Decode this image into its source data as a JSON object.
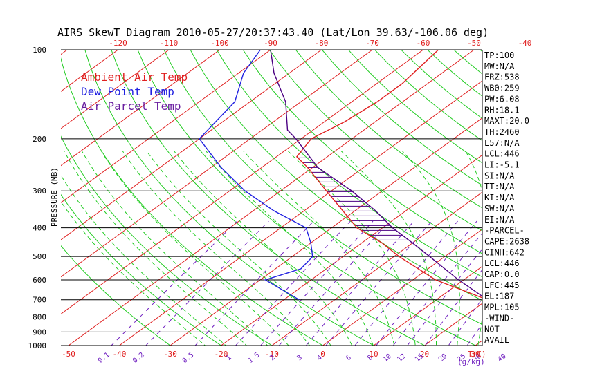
{
  "title": "AIRS SkewT Diagram 2010-05-27/20:37:43.40 (Lat/Lon 39.63/-106.06 deg)",
  "legend": [
    {
      "label": "Ambient Air Temp",
      "color": "#e02020"
    },
    {
      "label": "Dew Point Temp",
      "color": "#2020e0"
    },
    {
      "label": "Air Parcel Temp",
      "color": "#6a1fa0"
    }
  ],
  "colors": {
    "isotherm": "#e02020",
    "dry_adiabat": "#22cc22",
    "moist_adiabat": "#22cc22",
    "mixing_ratio": "#7020c0",
    "temperature": "#e02020",
    "dewpoint": "#2020e0",
    "parcel": "#4b0082",
    "cape_hatch": "#4b0082",
    "axis_text_red": "#e02020",
    "axis_text_purple": "#7020c0",
    "isobar": "#000000"
  },
  "indices": [
    "TP:100",
    "MW:N/A",
    "FRZ:538",
    "WB0:259",
    "PW:6.08",
    "RH:18.1",
    "MAXT:20.0",
    "TH:2460",
    "L57:N/A",
    "LCL:446",
    "LI:-5.1",
    "SI:N/A",
    "TT:N/A",
    "KI:N/A",
    "SW:N/A",
    "EI:N/A",
    "-PARCEL-",
    "CAPE:2638",
    "CINH:642",
    "LCL:446",
    "CAP:0.0",
    "LFC:445",
    "EL:187",
    "MPL:105",
    "-WIND-",
    "NOT",
    "AVAIL"
  ],
  "chart_data": {
    "type": "line",
    "title": "AIRS SkewT Diagram 2010-05-27/20:37:43.40 (Lat/Lon 39.63/-106.06 deg)",
    "ylabel": "PRESSURE (MB)",
    "xlabel": "T(C)",
    "mixing_ratio_unit": "g/kg",
    "y_scale": "log",
    "ylim": [
      1000,
      100
    ],
    "xlim_bottom": [
      -50,
      40
    ],
    "pressure_ticks": [
      100,
      200,
      300,
      400,
      500,
      600,
      700,
      800,
      900,
      1000
    ],
    "pressure_tick_labels": [
      "100",
      "200",
      "300",
      "400",
      "500",
      "600",
      "700",
      "800",
      "900",
      "1000"
    ],
    "top_temp_ticks": [
      -120,
      -110,
      -100,
      -90,
      -80,
      -70,
      -60,
      -50,
      -40
    ],
    "top_temp_tick_labels": [
      "-120",
      "-110",
      "-100",
      "-90",
      "-80",
      "-70",
      "-60",
      "-50",
      "-40"
    ],
    "bottom_temp_ticks": [
      -50,
      -40,
      -30,
      -20,
      -10,
      0,
      10,
      20,
      30
    ],
    "bottom_temp_tick_labels": [
      "-50",
      "-40",
      "-30",
      "-20",
      "-10",
      "0",
      "10",
      "20",
      "30"
    ],
    "mixing_ratio_labels": [
      "0.1",
      "0.2",
      "0.5",
      "1",
      "1.5",
      "2",
      "3",
      "4",
      "6",
      "8",
      "10",
      "12",
      "15",
      "20",
      "25",
      "30",
      "40"
    ],
    "mixing_ratio_values": [
      0.1,
      0.2,
      0.5,
      1,
      1.5,
      2,
      3,
      4,
      6,
      8,
      10,
      12,
      15,
      20,
      25,
      30,
      40
    ],
    "series": [
      {
        "name": "Ambient Air Temp",
        "points": [
          [
            700,
            20.0
          ],
          [
            600,
            4.5
          ],
          [
            500,
            -9.0
          ],
          [
            450,
            -16.0
          ],
          [
            400,
            -25.0
          ],
          [
            300,
            -41.0
          ],
          [
            250,
            -51.0
          ],
          [
            230,
            -56.0
          ],
          [
            200,
            -58.0
          ],
          [
            175,
            -56.0
          ],
          [
            150,
            -55.0
          ],
          [
            130,
            -55.0
          ],
          [
            100,
            -57.0
          ]
        ]
      },
      {
        "name": "Dew Point Temp",
        "points": [
          [
            700,
            -17.0
          ],
          [
            600,
            -29.0
          ],
          [
            550,
            -25.0
          ],
          [
            500,
            -26.0
          ],
          [
            450,
            -30.0
          ],
          [
            400,
            -35.0
          ],
          [
            350,
            -46.0
          ],
          [
            300,
            -57.0
          ],
          [
            250,
            -68.0
          ],
          [
            200,
            -80.0
          ],
          [
            150,
            -83.0
          ],
          [
            120,
            -89.0
          ],
          [
            100,
            -92.0
          ]
        ]
      },
      {
        "name": "Air Parcel Temp",
        "points": [
          [
            700,
            20.0
          ],
          [
            600,
            9.0
          ],
          [
            500,
            -3.0
          ],
          [
            450,
            -10.0
          ],
          [
            400,
            -18.0
          ],
          [
            350,
            -26.0
          ],
          [
            300,
            -36.0
          ],
          [
            250,
            -49.0
          ],
          [
            200,
            -61.0
          ],
          [
            187,
            -65.0
          ],
          [
            150,
            -73.0
          ],
          [
            120,
            -83.0
          ],
          [
            100,
            -90.0
          ]
        ]
      }
    ]
  }
}
